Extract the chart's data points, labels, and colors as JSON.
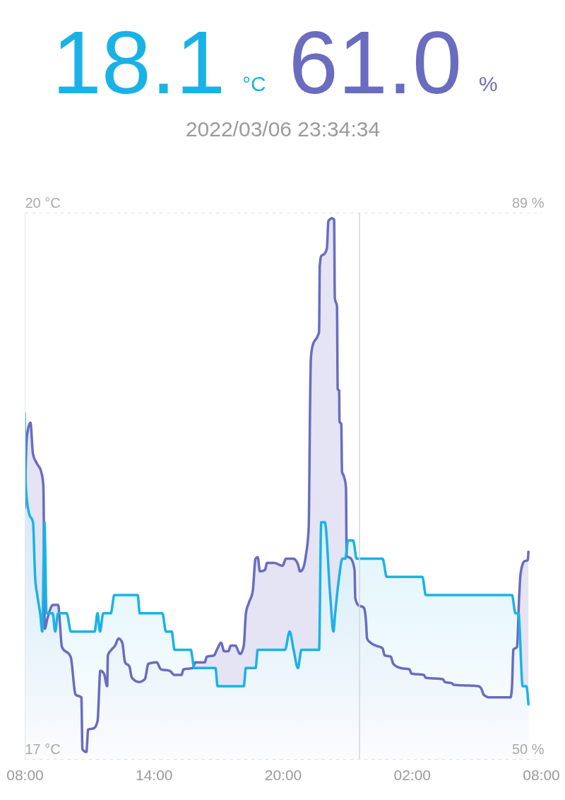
{
  "chart_data": {
    "type": "area",
    "annotations": [
      "18.1 °C",
      "61.0 %",
      "2022/03/06 23:34:34"
    ],
    "series": [
      {
        "color": "#1ab2e6",
        "x": [
          "2022-03-06T08:00",
          "2022-03-06T08:03",
          "2022-03-06T08:12",
          "2022-03-06T08:23",
          "2022-03-06T08:29",
          "2022-03-06T08:35",
          "2022-03-06T08:43",
          "2022-03-06T08:49",
          "2022-03-06T08:55",
          "2022-03-06T09:01",
          "2022-03-06T09:18",
          "2022-03-06T09:25",
          "2022-03-06T09:33",
          "2022-03-06T09:57",
          "2022-03-06T10:09",
          "2022-03-06T11:15",
          "2022-03-06T11:23",
          "2022-03-06T11:30",
          "2022-03-06T11:39",
          "2022-03-06T12:00",
          "2022-03-06T12:10",
          "2022-03-06T13:15",
          "2022-03-06T13:21",
          "2022-03-06T14:24",
          "2022-03-06T14:34",
          "2022-03-06T14:50",
          "2022-03-06T14:58",
          "2022-03-06T15:43",
          "2022-03-06T15:53",
          "2022-03-06T16:52",
          "2022-03-06T16:58",
          "2022-03-06T18:11",
          "2022-03-06T18:17",
          "2022-03-06T18:44",
          "2022-03-06T18:50",
          "2022-03-06T20:06",
          "2022-03-06T20:19",
          "2022-03-06T20:30",
          "2022-03-06T20:42",
          "2022-03-06T20:52",
          "2022-03-06T21:41",
          "2022-03-06T21:47",
          "2022-03-06T21:57",
          "2022-03-06T22:12",
          "2022-03-06T22:21",
          "2022-03-06T22:26",
          "2022-03-06T22:37",
          "2022-03-06T22:46",
          "2022-03-06T22:54",
          "2022-03-06T23:02",
          "2022-03-06T23:16",
          "2022-03-06T23:26",
          "2022-03-07T00:38",
          "2022-03-07T00:50",
          "2022-03-07T02:29",
          "2022-03-07T02:39",
          "2022-03-07T06:39",
          "2022-03-07T06:49",
          "2022-03-07T06:57",
          "2022-03-07T07:09",
          "2022-03-07T07:19",
          "2022-03-07T07:25"
        ],
        "values": [
          18.9,
          18.5,
          18.35,
          18.3,
          18.0,
          17.9,
          17.8,
          17.7,
          18.3,
          17.8,
          17.8,
          17.7,
          17.8,
          17.8,
          17.7,
          17.7,
          17.8,
          17.7,
          17.8,
          17.8,
          17.9,
          17.9,
          17.8,
          17.8,
          17.7,
          17.7,
          17.6,
          17.6,
          17.5,
          17.5,
          17.4,
          17.4,
          17.5,
          17.5,
          17.6,
          17.6,
          17.7,
          17.6,
          17.5,
          17.6,
          17.6,
          18.3,
          18.3,
          17.9,
          17.7,
          17.8,
          18.0,
          18.1,
          18.1,
          18.2,
          18.2,
          18.1,
          18.1,
          18.0,
          18.0,
          17.9,
          17.9,
          17.8,
          17.8,
          17.4,
          17.4,
          17.3
        ]
      },
      {
        "color": "#6a6cc0",
        "axis": "y2",
        "x": [
          "2022-03-06T08:00",
          "2022-03-06T08:06",
          "2022-03-06T08:16",
          "2022-03-06T08:23",
          "2022-03-06T08:34",
          "2022-03-06T08:46",
          "2022-03-06T08:52",
          "2022-03-06T08:56",
          "2022-03-06T09:03",
          "2022-03-06T09:19",
          "2022-03-06T09:33",
          "2022-03-06T09:44",
          "2022-03-06T10:08",
          "2022-03-06T10:22",
          "2022-03-06T10:38",
          "2022-03-06T10:41",
          "2022-03-06T10:52",
          "2022-03-06T10:57",
          "2022-03-06T11:13",
          "2022-03-06T11:23",
          "2022-03-06T11:31",
          "2022-03-06T11:41",
          "2022-03-06T11:50",
          "2022-03-06T11:52",
          "2022-03-06T12:02",
          "2022-03-06T12:12",
          "2022-03-06T12:22",
          "2022-03-06T12:32",
          "2022-03-06T12:40",
          "2022-03-06T12:52",
          "2022-03-06T12:59",
          "2022-03-06T13:19",
          "2022-03-06T13:35",
          "2022-03-06T13:45",
          "2022-03-06T14:08",
          "2022-03-06T14:20",
          "2022-03-06T14:44",
          "2022-03-06T14:58",
          "2022-03-06T15:17",
          "2022-03-06T15:23",
          "2022-03-06T15:49",
          "2022-03-06T15:56",
          "2022-03-06T16:22",
          "2022-03-06T16:28",
          "2022-03-06T16:48",
          "2022-03-06T16:56",
          "2022-03-06T17:08",
          "2022-03-06T17:16",
          "2022-03-06T17:28",
          "2022-03-06T17:35",
          "2022-03-06T17:47",
          "2022-03-06T18:01",
          "2022-03-06T18:11",
          "2022-03-06T18:17",
          "2022-03-06T18:26",
          "2022-03-06T18:36",
          "2022-03-06T18:44",
          "2022-03-06T18:50",
          "2022-03-06T18:56",
          "2022-03-06T19:10",
          "2022-03-06T19:16",
          "2022-03-06T19:35",
          "2022-03-06T19:59",
          "2022-03-06T20:09",
          "2022-03-06T20:29",
          "2022-03-06T20:42",
          "2022-03-06T20:48",
          "2022-03-06T20:54",
          "2022-03-06T21:04",
          "2022-03-06T21:12",
          "2022-03-06T21:16",
          "2022-03-06T21:18",
          "2022-03-06T21:23",
          "2022-03-06T21:37",
          "2022-03-06T21:41",
          "2022-03-06T21:43",
          "2022-03-06T21:47",
          "2022-03-06T21:57",
          "2022-03-06T22:03",
          "2022-03-06T22:07",
          "2022-03-06T22:17",
          "2022-03-06T22:23",
          "2022-03-06T22:25",
          "2022-03-06T22:31",
          "2022-03-06T22:33",
          "2022-03-06T22:37",
          "2022-03-06T22:38",
          "2022-03-06T22:43",
          "2022-03-06T22:45",
          "2022-03-06T22:50",
          "2022-03-06T22:56",
          "2022-03-06T22:58",
          "2022-03-06T23:10",
          "2022-03-06T23:20",
          "2022-03-06T23:22",
          "2022-03-06T23:30",
          "2022-03-06T23:46",
          "2022-03-06T23:52",
          "2022-03-06T23:55",
          "2022-03-07T00:05",
          "2022-03-07T00:19",
          "2022-03-07T00:38",
          "2022-03-07T00:44",
          "2022-03-07T01:01",
          "2022-03-07T01:08",
          "2022-03-07T01:28",
          "2022-03-07T01:53",
          "2022-03-07T01:59",
          "2022-03-07T02:33",
          "2022-03-07T02:39",
          "2022-03-07T03:26",
          "2022-03-07T03:32",
          "2022-03-07T03:52",
          "2022-03-07T03:56",
          "2022-03-07T05:05",
          "2022-03-07T05:14",
          "2022-03-07T05:20",
          "2022-03-07T05:36",
          "2022-03-07T06:35",
          "2022-03-07T06:39",
          "2022-03-07T06:43",
          "2022-03-07T06:53",
          "2022-03-07T06:59",
          "2022-03-07T07:03",
          "2022-03-07T07:13",
          "2022-03-07T07:23",
          "2022-03-07T07:25"
        ],
        "values": [
          67.9,
          73.0,
          74.0,
          71.8,
          71.1,
          70.5,
          69.5,
          59.3,
          60.0,
          61.0,
          61.0,
          58.0,
          57.3,
          54.6,
          54.4,
          50.7,
          50.5,
          52.1,
          52.2,
          52.7,
          56.3,
          56.1,
          55.2,
          57.4,
          57.8,
          58.1,
          58.6,
          58.3,
          56.9,
          56.6,
          55.8,
          55.5,
          55.7,
          56.8,
          56.9,
          56.4,
          56.3,
          56.0,
          56.0,
          56.4,
          56.5,
          56.9,
          56.9,
          57.3,
          57.4,
          57.8,
          58.3,
          57.7,
          57.7,
          58.1,
          58.1,
          57.5,
          58.1,
          60.4,
          61.2,
          62.0,
          64.3,
          64.4,
          63.4,
          63.5,
          64.0,
          64.0,
          63.8,
          64.3,
          64.3,
          63.9,
          63.4,
          63.5,
          64.5,
          66.5,
          75.4,
          78.5,
          79.5,
          80.2,
          80.5,
          85.2,
          85.9,
          86.1,
          86.5,
          88.4,
          88.6,
          88.5,
          82.9,
          82.3,
          76.4,
          76.3,
          74.1,
          73.9,
          70.5,
          70.2,
          69.4,
          64.5,
          64.3,
          63.5,
          61.5,
          61.0,
          60.8,
          59.8,
          58.6,
          58.3,
          58.1,
          57.9,
          57.4,
          57.3,
          56.8,
          56.5,
          56.4,
          56.1,
          56.0,
          55.8,
          55.7,
          55.5,
          55.4,
          55.3,
          55.2,
          55.0,
          54.6,
          54.4,
          54.4,
          55.1,
          57.8,
          58.0,
          61.5,
          63.2,
          64.1,
          64.2,
          64.8
        ]
      }
    ],
    "xlim": [
      "2022-03-06T08:00",
      "2022-03-07T08:00"
    ],
    "xticks": [
      {
        "value": "2022-03-06T08:00",
        "label": "08:00"
      },
      {
        "value": "2022-03-06T14:00",
        "label": "14:00"
      },
      {
        "value": "2022-03-06T20:00",
        "label": "20:00"
      },
      {
        "value": "2022-03-07T02:00",
        "label": "02:00"
      },
      {
        "value": "2022-03-07T08:00",
        "label": "08:00"
      }
    ],
    "ylim": [
      17,
      20
    ],
    "yticks": [
      {
        "value": 17,
        "label": "17 °C"
      },
      {
        "value": 20,
        "label": "20 °C"
      }
    ],
    "y2lim": [
      50,
      89
    ],
    "y2ticks": [
      {
        "value": 50,
        "label": "50 %"
      },
      {
        "value": 89,
        "label": "89 %"
      }
    ],
    "grid": "y",
    "ref_lines": [
      {
        "axis": "x",
        "value": "2022-03-06T23:34",
        "color": "#d6d6d6"
      }
    ]
  }
}
